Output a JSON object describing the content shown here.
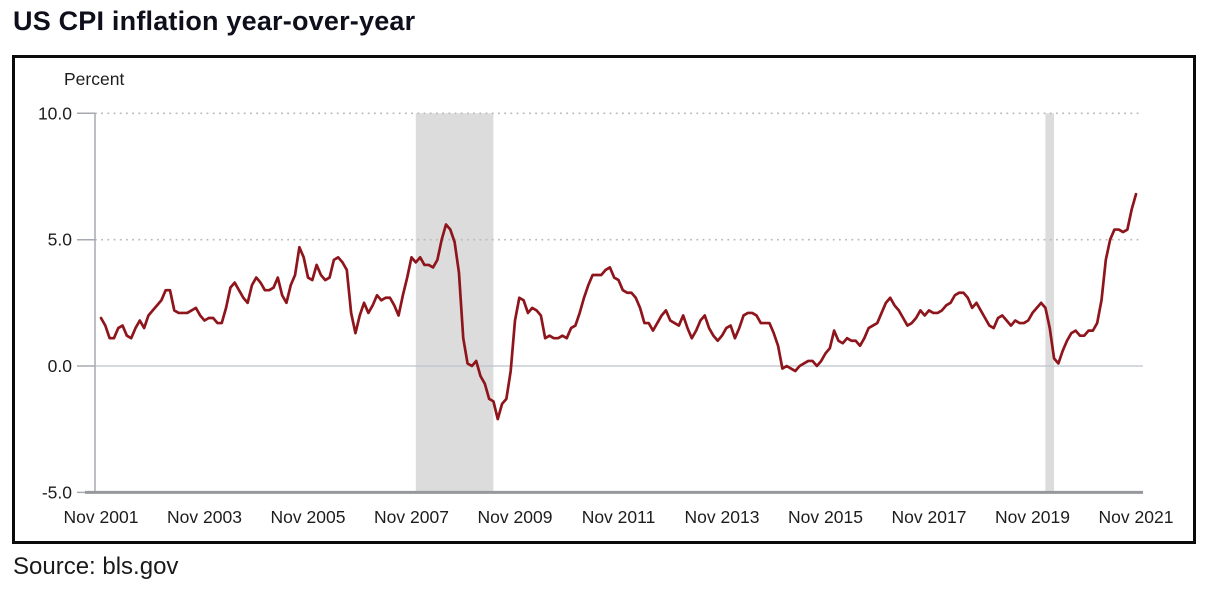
{
  "page": {
    "title": "US CPI inflation year-over-year",
    "source": "Source: bls.gov"
  },
  "chart_data": {
    "type": "line",
    "title": "US CPI inflation year-over-year",
    "unit_label": "Percent",
    "series_name": "US CPI inflation year-over-year (percent)",
    "frequency": "monthly",
    "x_start": "2001-11",
    "x_end": "2021-11",
    "values": [
      1.9,
      1.6,
      1.1,
      1.1,
      1.5,
      1.6,
      1.2,
      1.1,
      1.5,
      1.8,
      1.5,
      2.0,
      2.2,
      2.4,
      2.6,
      3.0,
      3.0,
      2.2,
      2.1,
      2.1,
      2.1,
      2.2,
      2.3,
      2.0,
      1.8,
      1.9,
      1.9,
      1.7,
      1.7,
      2.3,
      3.1,
      3.3,
      3.0,
      2.7,
      2.5,
      3.2,
      3.5,
      3.3,
      3.0,
      3.0,
      3.1,
      3.5,
      2.8,
      2.5,
      3.2,
      3.6,
      4.7,
      4.3,
      3.5,
      3.4,
      4.0,
      3.6,
      3.4,
      3.5,
      4.2,
      4.3,
      4.1,
      3.8,
      2.1,
      1.3,
      2.0,
      2.5,
      2.1,
      2.4,
      2.8,
      2.6,
      2.7,
      2.7,
      2.4,
      2.0,
      2.8,
      3.5,
      4.3,
      4.1,
      4.3,
      4.0,
      4.0,
      3.9,
      4.2,
      5.0,
      5.6,
      5.4,
      4.9,
      3.7,
      1.1,
      0.1,
      0.0,
      0.2,
      -0.4,
      -0.7,
      -1.3,
      -1.4,
      -2.1,
      -1.5,
      -1.3,
      -0.2,
      1.8,
      2.7,
      2.6,
      2.1,
      2.3,
      2.2,
      2.0,
      1.1,
      1.2,
      1.1,
      1.1,
      1.2,
      1.1,
      1.5,
      1.6,
      2.1,
      2.7,
      3.2,
      3.6,
      3.6,
      3.6,
      3.8,
      3.9,
      3.5,
      3.4,
      3.0,
      2.9,
      2.9,
      2.7,
      2.3,
      1.7,
      1.7,
      1.4,
      1.7,
      2.0,
      2.2,
      1.8,
      1.7,
      1.6,
      2.0,
      1.5,
      1.1,
      1.4,
      1.8,
      2.0,
      1.5,
      1.2,
      1.0,
      1.2,
      1.5,
      1.6,
      1.1,
      1.5,
      2.0,
      2.1,
      2.1,
      2.0,
      1.7,
      1.7,
      1.7,
      1.3,
      0.8,
      -0.1,
      0.0,
      -0.1,
      -0.2,
      0.0,
      0.1,
      0.2,
      0.2,
      0.0,
      0.2,
      0.5,
      0.7,
      1.4,
      1.0,
      0.9,
      1.1,
      1.0,
      1.0,
      0.8,
      1.1,
      1.5,
      1.6,
      1.7,
      2.1,
      2.5,
      2.7,
      2.4,
      2.2,
      1.9,
      1.6,
      1.7,
      1.9,
      2.2,
      2.0,
      2.2,
      2.1,
      2.1,
      2.2,
      2.4,
      2.5,
      2.8,
      2.9,
      2.9,
      2.7,
      2.3,
      2.5,
      2.2,
      1.9,
      1.6,
      1.5,
      1.9,
      2.0,
      1.8,
      1.6,
      1.8,
      1.7,
      1.7,
      1.8,
      2.1,
      2.3,
      2.5,
      2.3,
      1.5,
      0.3,
      0.1,
      0.6,
      1.0,
      1.3,
      1.4,
      1.2,
      1.2,
      1.4,
      1.4,
      1.7,
      2.6,
      4.2,
      5.0,
      5.4,
      5.4,
      5.3,
      5.4,
      6.2,
      6.8
    ],
    "ylim": [
      -5.0,
      10.0
    ],
    "ylabel": "Percent",
    "xlabel": "",
    "legend": "none",
    "grid": "dotted horizontal at 5.0 and 10.0; solid light at 0.0",
    "y_ticks": [
      {
        "label": "10.0",
        "value": 10.0,
        "grid": "dotted"
      },
      {
        "label": "5.0",
        "value": 5.0,
        "grid": "dotted"
      },
      {
        "label": "0.0",
        "value": 0.0,
        "grid": "solid"
      },
      {
        "label": "-5.0",
        "value": -5.0,
        "grid": "axis"
      }
    ],
    "x_ticks": [
      {
        "label": "Nov 2001",
        "month_index": 0
      },
      {
        "label": "Nov 2003",
        "month_index": 24
      },
      {
        "label": "Nov 2005",
        "month_index": 48
      },
      {
        "label": "Nov 2007",
        "month_index": 72
      },
      {
        "label": "Nov 2009",
        "month_index": 96
      },
      {
        "label": "Nov 2011",
        "month_index": 120
      },
      {
        "label": "Nov 2013",
        "month_index": 144
      },
      {
        "label": "Nov 2015",
        "month_index": 168
      },
      {
        "label": "Nov 2017",
        "month_index": 192
      },
      {
        "label": "Nov 2019",
        "month_index": 216
      },
      {
        "label": "Nov 2021",
        "month_index": 240
      }
    ],
    "recession_bands": [
      {
        "start": "2007-12",
        "end": "2009-06",
        "start_month_index": 73,
        "end_month_index": 91
      },
      {
        "start": "2020-02",
        "end": "2020-04",
        "start_month_index": 219,
        "end_month_index": 221
      }
    ],
    "colors": {
      "line": "#8e151b",
      "recession_band": "#dcdcdc",
      "zero_line": "#bcc3ce",
      "dotted_grid": "#b9b9b9",
      "y_axis": "#a6aab0",
      "x_axis": "#96989d",
      "text": "#1d1d1f"
    }
  }
}
